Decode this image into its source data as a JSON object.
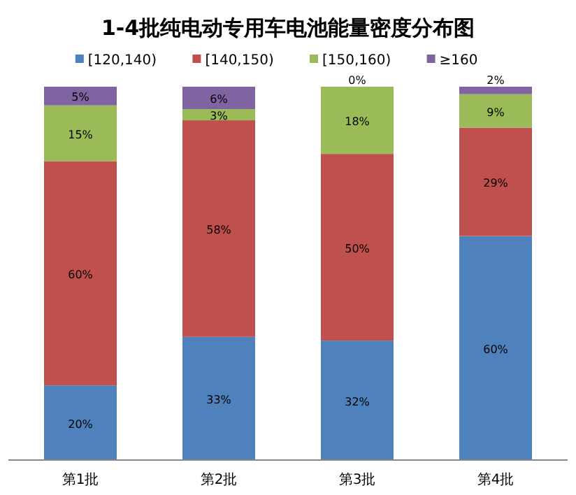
{
  "chart_data": {
    "type": "bar",
    "stacked": true,
    "title": "1-4批纯电动专用车电池能量密度分布图",
    "legend": "top",
    "categories": [
      "第1批",
      "第2批",
      "第3批",
      "第4批"
    ],
    "series": [
      {
        "name": "[120,140)",
        "color": "#4f81bd",
        "values": [
          20,
          33,
          32,
          60
        ],
        "value_labels": [
          "20%",
          "33%",
          "32%",
          "60%"
        ]
      },
      {
        "name": "[140,150)",
        "color": "#c0504d",
        "values": [
          60,
          58,
          50,
          29
        ],
        "value_labels": [
          "60%",
          "58%",
          "50%",
          "29%"
        ]
      },
      {
        "name": "[150,160)",
        "color": "#9bbb59",
        "values": [
          15,
          3,
          18,
          9
        ],
        "value_labels": [
          "15%",
          "3%",
          "18%",
          "9%"
        ]
      },
      {
        "name": "≥160",
        "color": "#8064a2",
        "values": [
          5,
          6,
          0,
          2
        ],
        "value_labels": [
          "5%",
          "6%",
          "0%",
          "2%"
        ]
      }
    ]
  }
}
